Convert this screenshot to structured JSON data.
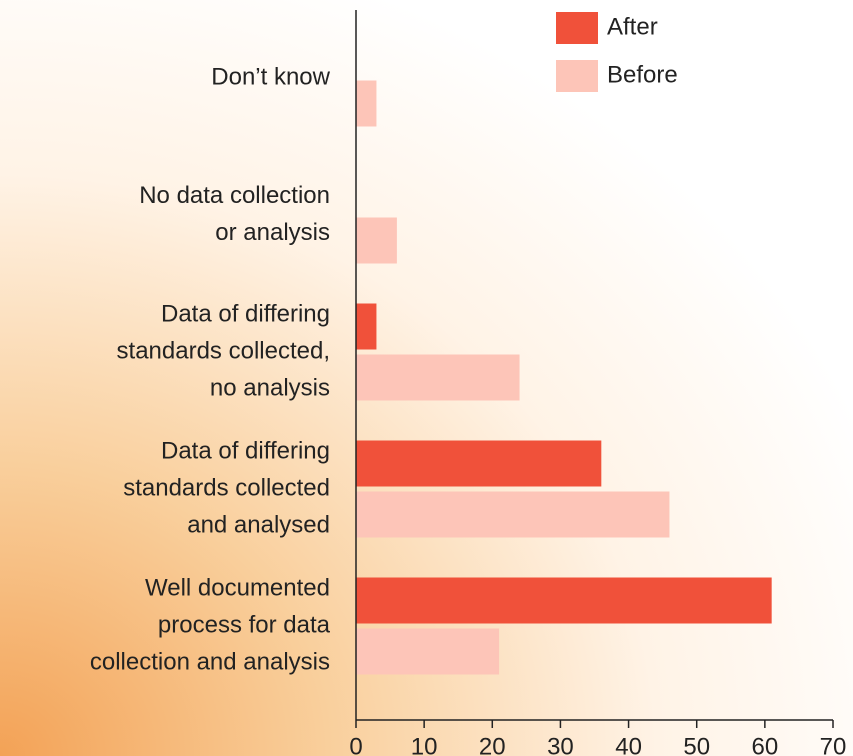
{
  "chart_data": {
    "type": "barh",
    "categories": [
      [
        "Don’t know"
      ],
      [
        "No data collection",
        "or analysis"
      ],
      [
        "Data of differing",
        "standards collected,",
        "no analysis"
      ],
      [
        "Data of differing",
        "standards collected",
        "and analysed"
      ],
      [
        "Well documented",
        "process for data",
        "collection and analysis"
      ]
    ],
    "series": [
      {
        "name": "After",
        "color": "#f0513a",
        "values": [
          0,
          0,
          3,
          36,
          61
        ]
      },
      {
        "name": "Before",
        "color": "#fdc5b8",
        "values": [
          3,
          6,
          24,
          46,
          21
        ]
      }
    ],
    "xlim": [
      0,
      70
    ],
    "xticks": [
      0,
      10,
      20,
      30,
      40,
      50,
      60,
      70
    ],
    "legend": "top-right"
  }
}
